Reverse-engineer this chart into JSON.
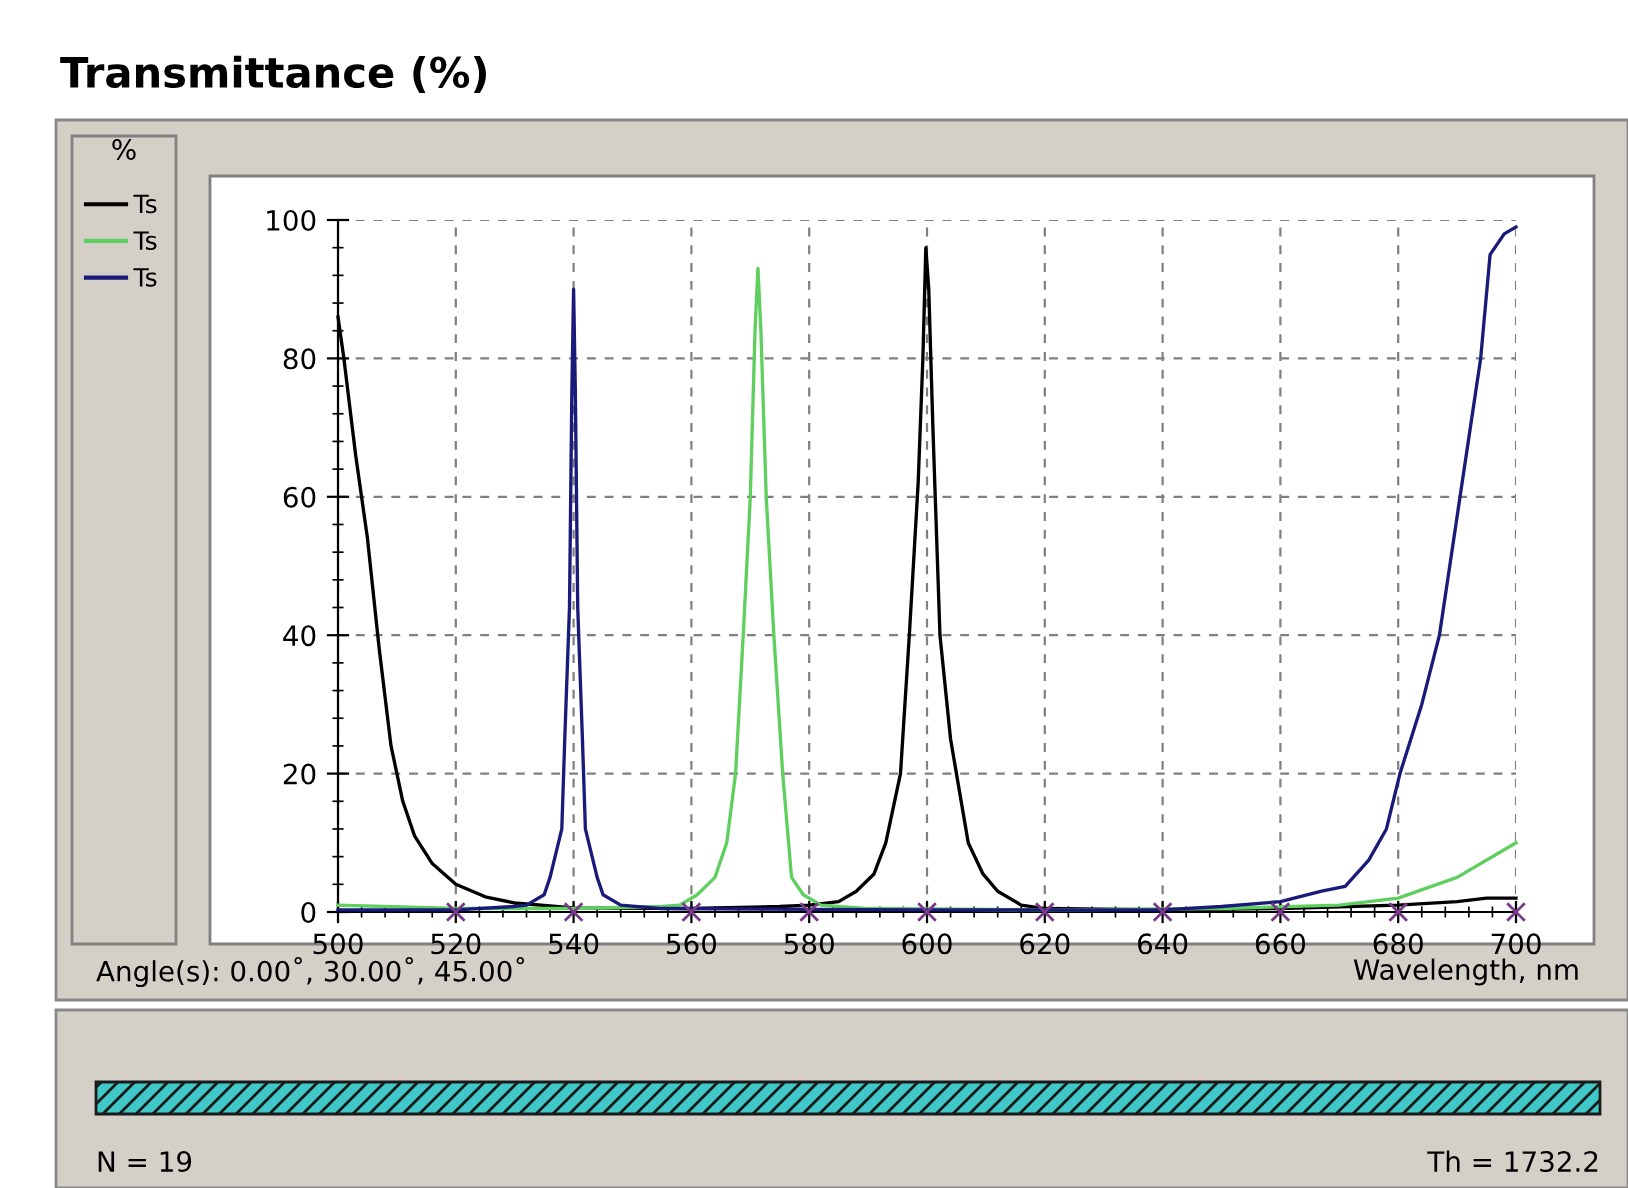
{
  "chart_data": {
    "type": "line",
    "title": "Transmittance (%)",
    "xlabel": "Wavelength, nm",
    "annotations": [
      "%",
      "Angle(s): 0.00˚, 30.00˚, 45.00˚",
      "N = 19",
      "Th = 1732.2"
    ],
    "xlim": [
      500,
      700
    ],
    "xticks": [
      500,
      520,
      540,
      560,
      580,
      600,
      620,
      640,
      660,
      680,
      700
    ],
    "ylim": [
      0,
      100
    ],
    "yticks": [
      0,
      20,
      40,
      60,
      80,
      100
    ],
    "grid": true,
    "legend": "left",
    "line_style": "solid",
    "marker": "none",
    "series": [
      {
        "name": "Ts",
        "color": "#000000",
        "x": [
          500,
          501,
          503,
          505,
          507,
          509,
          511,
          513,
          516,
          520,
          525,
          530,
          540,
          560,
          575,
          580,
          585,
          588,
          591,
          593,
          595.5,
          597,
          598.5,
          599.3,
          599.8,
          600.3,
          601,
          602.2,
          604,
          605,
          607,
          609.5,
          612,
          616,
          620,
          640,
          660,
          680,
          690,
          695,
          700
        ],
        "values": [
          86,
          80,
          66,
          54,
          38,
          24,
          16,
          11,
          7,
          4,
          2.2,
          1.3,
          0.6,
          0.5,
          0.8,
          1,
          1.5,
          3,
          5.5,
          10,
          20,
          40,
          62,
          80,
          96,
          90,
          70,
          40,
          25,
          20,
          10,
          5.5,
          3,
          1,
          0.5,
          0.3,
          0.5,
          1,
          1.5,
          2,
          2
        ]
      },
      {
        "name": "Ts",
        "color": "#5fcf5f",
        "x": [
          500,
          520,
          540,
          555,
          558,
          561,
          564,
          566,
          567.5,
          568.8,
          570,
          570.8,
          571.3,
          571.8,
          572.7,
          574,
          575.5,
          576.5,
          577,
          579,
          582,
          590,
          620,
          650,
          670,
          680,
          690,
          700
        ],
        "values": [
          1,
          0.5,
          0.5,
          0.8,
          1,
          2.5,
          5,
          10,
          20,
          40,
          60,
          84,
          93,
          84,
          60,
          40,
          20,
          10,
          5,
          2.5,
          1,
          0.5,
          0.3,
          0.5,
          1,
          2,
          5,
          10
        ]
      },
      {
        "name": "Ts",
        "color": "#1a1a7a",
        "x": [
          500,
          520,
          530,
          532,
          535,
          536,
          538,
          538.5,
          539.3,
          539.7,
          540,
          540.3,
          540.7,
          541.5,
          542,
          544,
          545,
          548,
          555,
          600,
          640,
          650,
          660,
          667,
          671,
          675,
          678,
          680.3,
          684,
          687,
          690.5,
          694,
          695.6,
          698,
          700
        ],
        "values": [
          0.3,
          0.3,
          0.8,
          1,
          2.5,
          5,
          12,
          25,
          44,
          75,
          90,
          75,
          44,
          25,
          12,
          5,
          2.5,
          1,
          0.5,
          0.3,
          0.3,
          0.8,
          1.5,
          3,
          3.7,
          7.5,
          12,
          20,
          30,
          40,
          60,
          80,
          95,
          98,
          99
        ]
      },
      {
        "type": "scatter",
        "marker": "cross",
        "color": "#7a3a8a",
        "x": [
          520,
          540,
          560,
          580,
          600,
          620,
          640,
          660,
          680,
          700
        ],
        "values": [
          0,
          0,
          0,
          0,
          0,
          0,
          0,
          0,
          0,
          0
        ]
      }
    ]
  }
}
